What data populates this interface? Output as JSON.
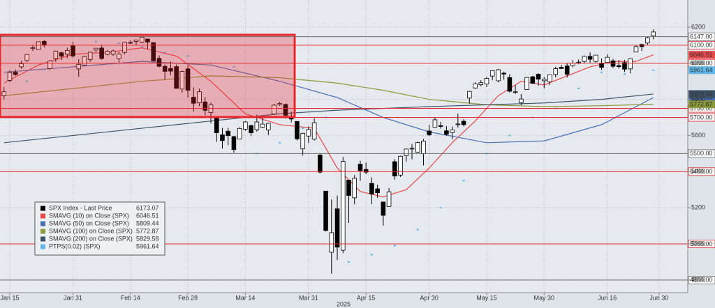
{
  "chart_data": {
    "type": "candlestick",
    "name": "SPX Index - Last Price",
    "up_color": "#ffffff",
    "down_color": "#000000",
    "ohlc": [
      [
        5820,
        5870,
        5800,
        5842
      ],
      [
        5905,
        5960,
        5895,
        5949
      ],
      [
        5950,
        5964,
        5930,
        5937
      ],
      [
        5980,
        6014,
        5970,
        5997
      ],
      [
        6015,
        6051,
        6006,
        6049
      ],
      [
        6081,
        6100,
        6068,
        6086
      ],
      [
        6076,
        6119,
        6075,
        6119
      ],
      [
        6121,
        6128,
        6088,
        6101
      ],
      [
        5970,
        6018,
        5962,
        6012
      ],
      [
        6026,
        6070,
        6008,
        6067
      ],
      [
        6058,
        6064,
        6018,
        6039
      ],
      [
        6050,
        6086,
        6028,
        6071
      ],
      [
        6097,
        6120,
        6030,
        6040
      ],
      [
        5969,
        6022,
        5924,
        5994
      ],
      [
        5990,
        6042,
        5985,
        6037
      ],
      [
        6021,
        6063,
        6007,
        6061
      ],
      [
        6073,
        6084,
        6060,
        6083
      ],
      [
        6084,
        6101,
        6020,
        6026
      ],
      [
        6049,
        6073,
        6044,
        6066
      ],
      [
        6050,
        6076,
        6042,
        6068
      ],
      [
        6025,
        6063,
        6004,
        6051
      ],
      [
        6060,
        6117,
        6050,
        6115
      ],
      [
        6115,
        6127,
        6107,
        6114
      ],
      [
        6121,
        6129,
        6100,
        6129
      ],
      [
        6117,
        6147,
        6111,
        6144
      ],
      [
        6134,
        6134,
        6080,
        6117
      ],
      [
        6114,
        6114,
        6008,
        6013
      ],
      [
        6027,
        6043,
        5977,
        5983
      ],
      [
        5983,
        5993,
        5909,
        5955
      ],
      [
        5971,
        6010,
        5933,
        5956
      ],
      [
        5981,
        5994,
        5858,
        5861
      ],
      [
        5857,
        5959,
        5837,
        5955
      ],
      [
        5969,
        5987,
        5810,
        5850
      ],
      [
        5812,
        5866,
        5732,
        5778
      ],
      [
        5781,
        5860,
        5762,
        5842
      ],
      [
        5786,
        5812,
        5711,
        5739
      ],
      [
        5727,
        5783,
        5667,
        5770
      ],
      [
        5705,
        5705,
        5565,
        5615
      ],
      [
        5604,
        5642,
        5528,
        5572
      ],
      [
        5624,
        5642,
        5546,
        5599
      ],
      [
        5594,
        5598,
        5505,
        5522
      ],
      [
        5580,
        5645,
        5580,
        5639
      ],
      [
        5635,
        5680,
        5626,
        5675
      ],
      [
        5655,
        5660,
        5597,
        5615
      ],
      [
        5632,
        5716,
        5621,
        5675
      ],
      [
        5646,
        5711,
        5641,
        5663
      ],
      [
        5631,
        5670,
        5603,
        5667
      ],
      [
        5719,
        5775,
        5719,
        5768
      ],
      [
        5771,
        5786,
        5764,
        5777
      ],
      [
        5772,
        5777,
        5694,
        5712
      ],
      [
        5695,
        5732,
        5673,
        5693
      ],
      [
        5678,
        5679,
        5572,
        5581
      ],
      [
        5527,
        5615,
        5489,
        5612
      ],
      [
        5597,
        5650,
        5558,
        5633
      ],
      [
        5580,
        5695,
        5572,
        5671
      ],
      [
        5492,
        5500,
        5390,
        5397
      ],
      [
        5292,
        5292,
        5069,
        5074
      ],
      [
        4954,
        5246,
        4835,
        5062
      ],
      [
        5194,
        5267,
        4910,
        4982
      ],
      [
        4965,
        5481,
        4949,
        5457
      ],
      [
        5353,
        5353,
        5115,
        5268
      ],
      [
        5255,
        5381,
        5220,
        5363
      ],
      [
        5441,
        5460,
        5349,
        5406
      ],
      [
        5412,
        5450,
        5386,
        5397
      ],
      [
        5335,
        5368,
        5220,
        5276
      ],
      [
        5305,
        5328,
        5255,
        5283
      ],
      [
        5232,
        5233,
        5101,
        5158
      ],
      [
        5207,
        5309,
        5207,
        5288
      ],
      [
        5455,
        5469,
        5356,
        5376
      ],
      [
        5381,
        5489,
        5371,
        5485
      ],
      [
        5489,
        5528,
        5456,
        5525
      ],
      [
        5528,
        5553,
        5468,
        5529
      ],
      [
        5508,
        5565,
        5506,
        5561
      ],
      [
        5499,
        5581,
        5434,
        5569
      ],
      [
        5625,
        5658,
        5597,
        5604
      ],
      [
        5646,
        5700,
        5644,
        5687
      ],
      [
        5655,
        5675,
        5638,
        5650
      ],
      [
        5626,
        5652,
        5598,
        5607
      ],
      [
        5616,
        5650,
        5578,
        5631
      ],
      [
        5663,
        5721,
        5644,
        5664
      ],
      [
        5679,
        5690,
        5650,
        5660
      ],
      [
        5807,
        5846,
        5777,
        5844
      ],
      [
        5863,
        5894,
        5859,
        5886
      ],
      [
        5881,
        5906,
        5872,
        5892
      ],
      [
        5885,
        5925,
        5868,
        5916
      ],
      [
        5929,
        5958,
        5907,
        5958
      ],
      [
        5903,
        5969,
        5895,
        5964
      ],
      [
        5945,
        5953,
        5909,
        5940
      ],
      [
        5921,
        5939,
        5838,
        5845
      ],
      [
        5841,
        5878,
        5830,
        5842
      ],
      [
        5781,
        5829,
        5768,
        5802
      ],
      [
        5854,
        5922,
        5854,
        5921
      ],
      [
        5925,
        5930,
        5886,
        5889
      ],
      [
        5939,
        5944,
        5875,
        5912
      ],
      [
        5903,
        5923,
        5861,
        5912
      ],
      [
        5897,
        5937,
        5879,
        5936
      ],
      [
        5938,
        5981,
        5922,
        5970
      ],
      [
        5978,
        5991,
        5967,
        5971
      ],
      [
        5985,
        5999,
        5921,
        5939
      ],
      [
        5987,
        6017,
        5978,
        6000
      ],
      [
        6004,
        6021,
        5995,
        6006
      ],
      [
        6010,
        6043,
        6000,
        6038
      ],
      [
        6038,
        6059,
        6002,
        6022
      ],
      [
        6010,
        6045,
        6003,
        6045
      ],
      [
        6000,
        6026,
        5963,
        5977
      ],
      [
        6004,
        6050,
        6004,
        6033
      ],
      [
        6013,
        6024,
        5974,
        5983
      ],
      [
        5987,
        6018,
        5971,
        5981
      ],
      [
        6004,
        6018,
        5952,
        5967
      ],
      [
        5969,
        6028,
        5944,
        6025
      ],
      [
        6062,
        6101,
        6060,
        6092
      ],
      [
        6104,
        6108,
        6068,
        6092
      ],
      [
        6112,
        6146,
        6103,
        6141
      ],
      [
        6151,
        6187,
        6132,
        6173.07
      ]
    ],
    "series": [
      {
        "name": "SMAVG (10) on Close (SPX)",
        "color": "#e8474b",
        "style": "line",
        "x": [
          0,
          6,
          12,
          18,
          24,
          30,
          36,
          42,
          48,
          54,
          58,
          62,
          66,
          70,
          74,
          78,
          82,
          86,
          90,
          94,
          98,
          102,
          106,
          110,
          113
        ],
        "values": [
          5890,
          5990,
          6050,
          6060,
          6085,
          6040,
          5900,
          5720,
          5660,
          5640,
          5420,
          5290,
          5260,
          5300,
          5420,
          5560,
          5680,
          5820,
          5900,
          5880,
          5930,
          5980,
          6010,
          6010,
          6046.51
        ]
      },
      {
        "name": "SMAVG (50) on Close (SPX)",
        "color": "#4a6fb5",
        "style": "line",
        "x": [
          0,
          12,
          24,
          36,
          48,
          58,
          66,
          74,
          84,
          94,
          104,
          113
        ],
        "values": [
          5950,
          5980,
          6010,
          5990,
          5900,
          5810,
          5700,
          5620,
          5560,
          5570,
          5660,
          5809.44
        ]
      },
      {
        "name": "SMAVG (100) on Close (SPX)",
        "color": "#8a9a3a",
        "style": "line",
        "x": [
          0,
          12,
          24,
          36,
          48,
          58,
          66,
          74,
          84,
          94,
          104,
          113
        ],
        "values": [
          5820,
          5860,
          5900,
          5930,
          5920,
          5890,
          5850,
          5800,
          5770,
          5760,
          5765,
          5772.87
        ]
      },
      {
        "name": "SMAVG (200) on Close (SPX)",
        "color": "#3d5468",
        "style": "line",
        "x": [
          0,
          12,
          24,
          36,
          48,
          58,
          66,
          74,
          84,
          94,
          104,
          113
        ],
        "values": [
          5560,
          5600,
          5640,
          5680,
          5720,
          5740,
          5750,
          5760,
          5770,
          5780,
          5800,
          5829.58
        ]
      },
      {
        "name": "PTPS(0.02) (SPX)",
        "color": "#5fb8e8",
        "style": "dots",
        "x": [
          0,
          4,
          8,
          12,
          16,
          20,
          24,
          28,
          32,
          36,
          40,
          44,
          48,
          52,
          56,
          60,
          64,
          68,
          72,
          76,
          80,
          84,
          88,
          92,
          96,
          100,
          104,
          108,
          113
        ],
        "values": [
          5750,
          5900,
          6000,
          6050,
          6120,
          6110,
          6090,
          6060,
          6040,
          6000,
          5980,
          5500,
          5560,
          5640,
          5700,
          4900,
          4940,
          4990,
          5080,
          5200,
          5350,
          5500,
          5600,
          5700,
          5750,
          5860,
          5950,
          5940,
          5961.64
        ]
      }
    ],
    "hlines": [
      {
        "value": 6147,
        "label": "6147.00",
        "color": "#6b6b6b"
      },
      {
        "value": 6100,
        "label": "6100.00",
        "color": "#e8262b"
      },
      {
        "value": 6000,
        "label": "6000.00",
        "color": "#e8262b"
      },
      {
        "value": 5750,
        "label": "5750.00",
        "color": "#e8262b"
      },
      {
        "value": 5700,
        "label": "5700.00",
        "color": "#e8262b"
      },
      {
        "value": 5500,
        "label": "5500.00",
        "color": "#6b6b6b"
      },
      {
        "value": 5400,
        "label": "5400.00",
        "color": "#e8262b"
      },
      {
        "value": 5000,
        "label": "5000.00",
        "color": "#e8262b"
      },
      {
        "value": 4800,
        "label": "4800.00",
        "color": "#6b6b6b"
      }
    ],
    "xlim": [
      -0.7,
      119
    ],
    "xticks": [
      {
        "value": 1,
        "label": "Jan 15"
      },
      {
        "value": 12,
        "label": "Jan 31"
      },
      {
        "value": 22,
        "label": "Feb 14"
      },
      {
        "value": 32,
        "label": "Feb 28"
      },
      {
        "value": 42,
        "label": "Mar 14"
      },
      {
        "value": 53,
        "label": "Mar 31"
      },
      {
        "value": 63,
        "label": "Apr 15"
      },
      {
        "value": 74,
        "label": "Apr 30"
      },
      {
        "value": 84,
        "label": "May 15"
      },
      {
        "value": 94,
        "label": "May 30"
      },
      {
        "value": 105,
        "label": "Jun 16"
      },
      {
        "value": 114,
        "label": "Jun 30"
      }
    ],
    "year_label": "2025",
    "ylim": [
      4730,
      6350
    ],
    "yticks": [
      4800,
      5000,
      5200,
      5400,
      5600,
      5800,
      6000,
      6200
    ],
    "grid": true
  }
}
